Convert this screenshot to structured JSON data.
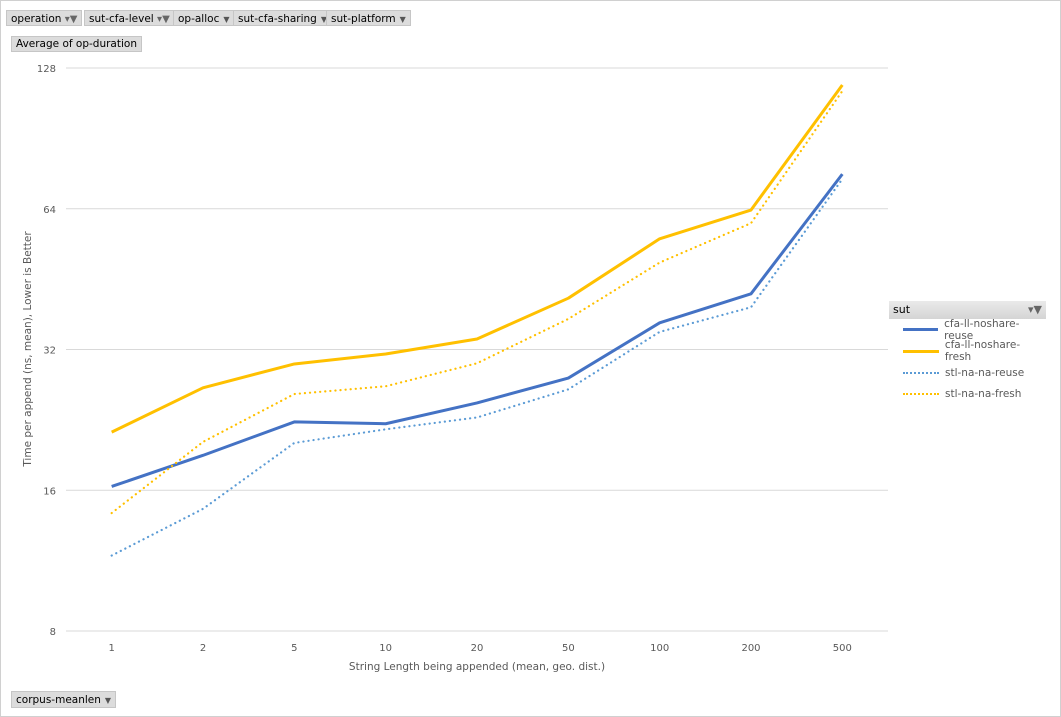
{
  "filters": [
    {
      "label": "operation",
      "filtered": true
    },
    {
      "label": "sut-cfa-level",
      "filtered": true
    },
    {
      "label": "op-alloc",
      "filtered": false
    },
    {
      "label": "sut-cfa-sharing",
      "filtered": false
    },
    {
      "label": "sut-platform",
      "filtered": false
    }
  ],
  "value_field": "Average of op-duration",
  "axis_field": "corpus-meanlen",
  "legend_field": "sut",
  "chart_data": {
    "type": "line",
    "xlabel": "String Length  being appended (mean, geo. dist.)",
    "ylabel": "Time per append (ns, mean),  Lower is Better",
    "categories": [
      "1",
      "2",
      "5",
      "10",
      "20",
      "50",
      "100",
      "200",
      "500"
    ],
    "yscale": "log2",
    "ylim": [
      8,
      128
    ],
    "yticks": [
      8,
      16,
      32,
      64,
      128
    ],
    "grid": true,
    "legend_position": "right",
    "series": [
      {
        "name": "cfa-ll-noshare-reuse",
        "color": "#4472c4",
        "style": "solid",
        "values": [
          16.3,
          19.0,
          22.4,
          22.2,
          24.6,
          27.8,
          36.5,
          42.1,
          75.9
        ]
      },
      {
        "name": "cfa-ll-noshare-fresh",
        "color": "#ffc000",
        "style": "solid",
        "values": [
          21.3,
          26.5,
          29.8,
          31.3,
          33.7,
          41.2,
          55.2,
          63.6,
          117.7
        ]
      },
      {
        "name": "stl-na-na-reuse",
        "color": "#5b9bd5",
        "style": "dotted",
        "values": [
          11.6,
          14.6,
          20.2,
          21.6,
          22.9,
          26.3,
          34.9,
          39.4,
          74.1
        ]
      },
      {
        "name": "stl-na-na-fresh",
        "color": "#ffc000",
        "style": "dotted",
        "values": [
          14.3,
          20.3,
          25.7,
          26.7,
          29.9,
          37.2,
          49.1,
          59.6,
          114.3
        ]
      }
    ]
  }
}
